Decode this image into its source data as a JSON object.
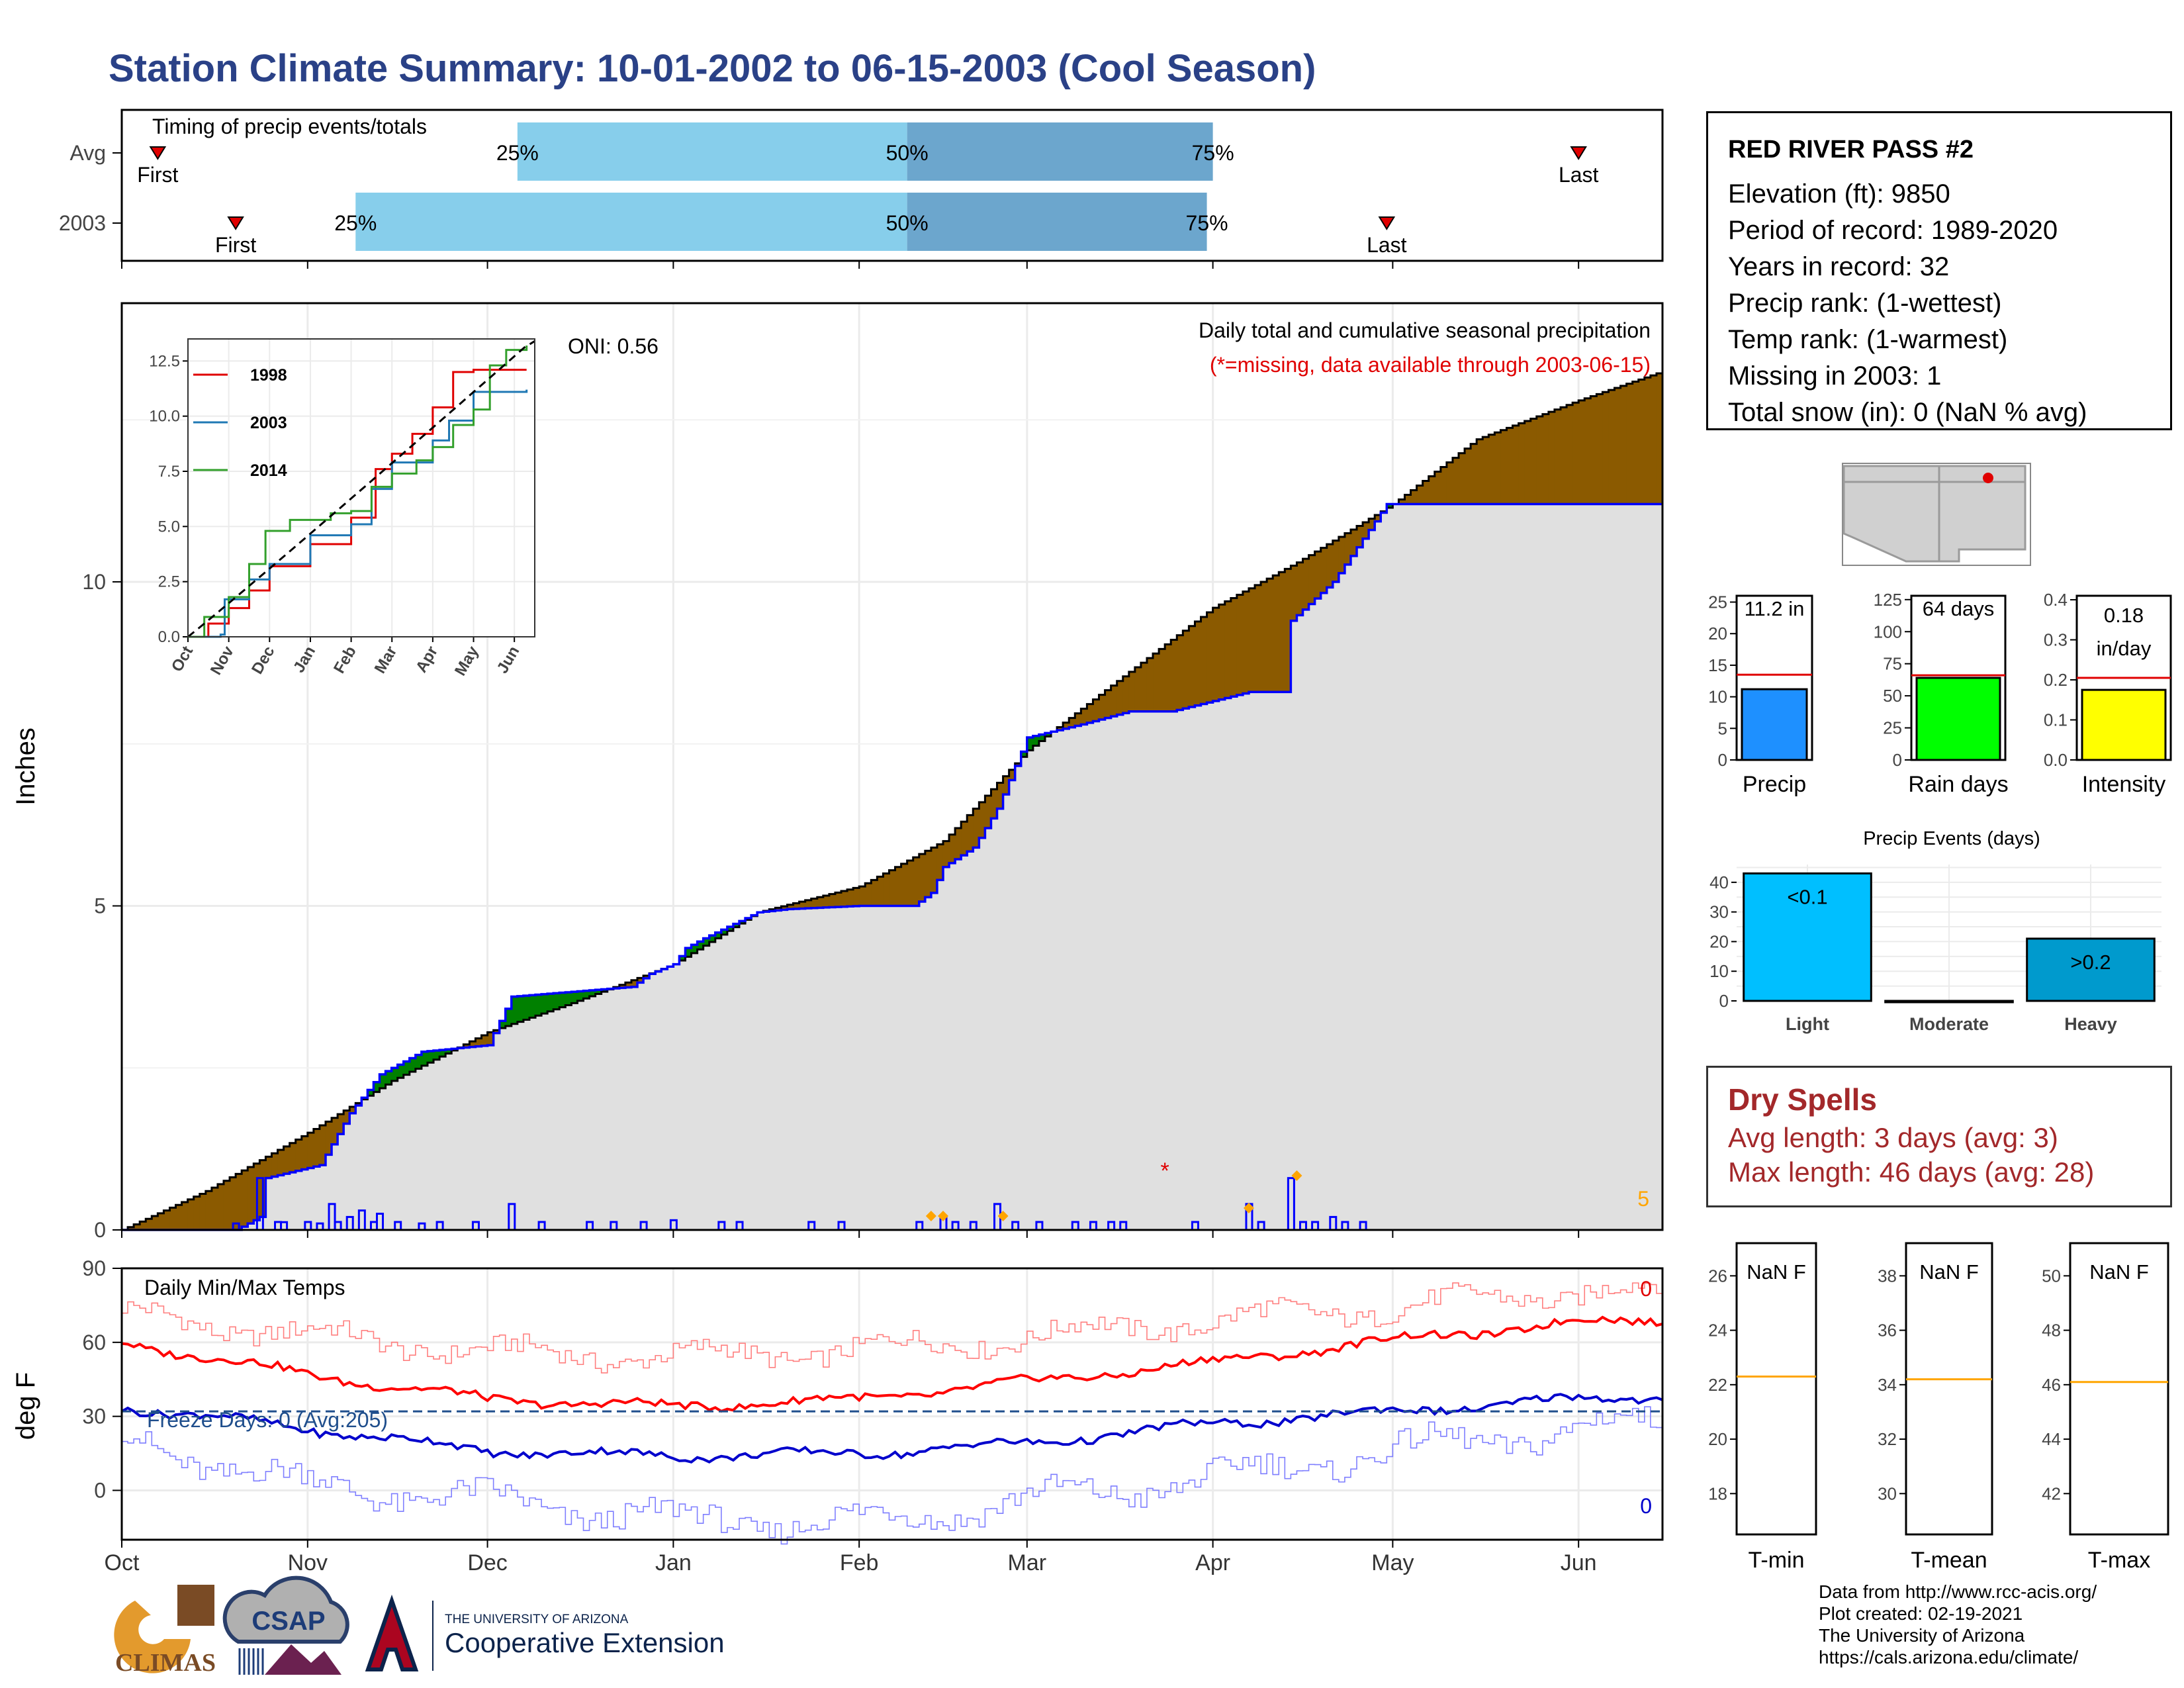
{
  "title": "Station Climate Summary: 10-01-2002 to 06-15-2003 (Cool Season)",
  "colors": {
    "title": "#2a4187",
    "cumulative_current": "#0000ff",
    "surplus_fill": "#008000",
    "deficit_fill": "#8b5a00",
    "normal_area": "#e0e0e0",
    "tmax": "#ff0000",
    "tmin": "#0000cc",
    "precip_bar": "#1e90ff",
    "raindays_bar": "#00ff00",
    "intensity_bar": "#ffff00",
    "dry_spells_text": "#a3282a"
  },
  "timing_panel": {
    "label": "Timing of precip events/totals",
    "rows": [
      {
        "name": "Avg",
        "first_label": "First",
        "last_label": "Last",
        "p25_label": "25%",
        "p50_label": "50%",
        "p75_label": "75%",
        "first": "2002-10-07",
        "p25": "2002-12-06",
        "p50": "2003-02-09",
        "p75": "2003-04-01",
        "last": "2003-06-01"
      },
      {
        "name": "2003",
        "first_label": "First",
        "last_label": "Last",
        "p25_label": "25%",
        "p50_label": "50%",
        "p75_label": "75%",
        "first": "2002-10-20",
        "p25": "2002-11-09",
        "p50": "2003-02-09",
        "p75": "2003-03-31",
        "last": "2003-04-30"
      }
    ]
  },
  "precip_panel": {
    "ylabel": "Inches",
    "yticks": [
      0,
      5,
      10
    ],
    "title_line1": "Daily total and cumulative seasonal precipitation",
    "title_line2": "(*=missing, data available through 2003-06-15)",
    "count_label": "5",
    "missing_marker": "*"
  },
  "inset": {
    "oni_label": "ONI: 0.56",
    "legend": [
      "1998",
      "2003",
      "2014"
    ],
    "yticks": [
      "0.0",
      "2.5",
      "5.0",
      "7.5",
      "10.0",
      "12.5"
    ],
    "xticks": [
      "Oct",
      "Nov",
      "Dec",
      "Jan",
      "Feb",
      "Mar",
      "Apr",
      "May",
      "Jun"
    ]
  },
  "temp_panel": {
    "ylabel": "deg F",
    "label": "Daily Min/Max Temps",
    "freeze_label": "Freeze Days: 0 (Avg:205)",
    "yticks": [
      0,
      30,
      60,
      90
    ],
    "top_count": "0",
    "bottom_count": "0"
  },
  "x_months": [
    "Oct",
    "Nov",
    "Dec",
    "Jan",
    "Feb",
    "Mar",
    "Apr",
    "May",
    "Jun"
  ],
  "station": {
    "name": "RED RIVER PASS #2",
    "lines": [
      "Elevation (ft): 9850",
      "Period of record: 1989-2020",
      "Years in record: 32",
      "Precip rank:  (1-wettest)",
      "Temp rank:  (1-warmest)",
      "Missing in 2003: 1",
      "Total snow (in): 0 (NaN % avg)"
    ]
  },
  "mini_bars": [
    {
      "label": "Precip",
      "value_text": "11.2 in",
      "value": 11.2,
      "avg": 13.5,
      "ymax": 26,
      "ticks": [
        "0",
        "5",
        "10",
        "15",
        "20",
        "25"
      ]
    },
    {
      "label": "Rain days",
      "value_text": "64 days",
      "value": 64,
      "avg": 66,
      "ymax": 128,
      "ticks": [
        "0",
        "25",
        "50",
        "75",
        "100",
        "125"
      ]
    },
    {
      "label": "Intensity",
      "value_text": "0.18 in/day",
      "value_line1": "0.18",
      "value_line2": "in/day",
      "value": 0.175,
      "avg": 0.205,
      "ymax": 0.41,
      "ticks": [
        "0.0",
        "0.1",
        "0.2",
        "0.3",
        "0.4"
      ]
    }
  ],
  "events": {
    "title": "Precip Events (days)",
    "categories": [
      "Light",
      "Moderate",
      "Heavy"
    ],
    "values": [
      43,
      0,
      21
    ],
    "labels": [
      "<0.1",
      "",
      ">0.2"
    ],
    "ticks": [
      "0",
      "10",
      "20",
      "30",
      "40"
    ]
  },
  "dry_spells": {
    "title": "Dry Spells",
    "avg_line": "Avg length: 3 days (avg: 3)",
    "max_line": "Max length: 46 days (avg: 28)"
  },
  "temp_boxes": [
    {
      "label": "T-min",
      "value_text": "NaN F",
      "avg": 22.3,
      "ticks": [
        "18",
        "20",
        "22",
        "24",
        "26"
      ]
    },
    {
      "label": "T-mean",
      "value_text": "NaN F",
      "avg": 34.2,
      "ticks": [
        "30",
        "32",
        "34",
        "36",
        "38"
      ]
    },
    {
      "label": "T-max",
      "value_text": "NaN F",
      "avg": 46.1,
      "ticks": [
        "42",
        "44",
        "46",
        "48",
        "50"
      ]
    }
  ],
  "credits": [
    "Data from http://www.rcc-acis.org/",
    "Plot created: 02-19-2021",
    "The University of Arizona",
    "https://cals.arizona.edu/climate/"
  ],
  "logos": {
    "climas": "CLIMAS",
    "csap": "CSAP",
    "ua_line1": "THE UNIVERSITY OF ARIZONA",
    "ua_line2": "Cooperative Extension"
  },
  "chart_data": [
    {
      "type": "area",
      "name": "cumulative precipitation",
      "ylabel": "Inches",
      "ylim": [
        0,
        14.3
      ],
      "normal_cumulative": {
        "x": [
          "2002-10-01",
          "2002-10-15",
          "2002-11-01",
          "2002-11-15",
          "2002-12-01",
          "2002-12-15",
          "2003-01-01",
          "2003-01-15",
          "2003-02-01",
          "2003-02-15",
          "2003-03-01",
          "2003-03-15",
          "2003-04-01",
          "2003-04-15",
          "2003-05-01",
          "2003-05-15",
          "2003-06-01",
          "2003-06-15"
        ],
        "y": [
          0.0,
          0.6,
          1.5,
          2.3,
          3.05,
          3.5,
          4.1,
          4.9,
          5.3,
          6.0,
          7.4,
          8.4,
          9.6,
          10.3,
          11.2,
          12.2,
          12.8,
          13.25
        ]
      },
      "current_cumulative": {
        "x": [
          "2002-10-01",
          "2002-10-20",
          "2002-10-24",
          "2002-10-25",
          "2002-11-03",
          "2002-11-08",
          "2002-11-13",
          "2002-11-20",
          "2002-12-01",
          "2002-12-05",
          "2002-12-25",
          "2002-12-28",
          "2003-01-01",
          "2003-01-03",
          "2003-01-06",
          "2003-01-15",
          "2003-01-20",
          "2003-02-01",
          "2003-02-10",
          "2003-02-13",
          "2003-02-15",
          "2003-02-20",
          "2003-02-24",
          "2003-03-01",
          "2003-03-10",
          "2003-03-18",
          "2003-03-25",
          "2003-04-07",
          "2003-04-13",
          "2003-04-14",
          "2003-04-21",
          "2003-04-30",
          "2003-06-15"
        ],
        "y": [
          0.0,
          0.0,
          0.2,
          0.8,
          1.0,
          1.8,
          2.4,
          2.75,
          2.85,
          3.6,
          3.75,
          3.95,
          4.1,
          4.35,
          4.5,
          4.9,
          4.95,
          5.0,
          5.0,
          5.2,
          5.6,
          5.9,
          6.5,
          7.6,
          7.8,
          8.0,
          8.0,
          8.3,
          8.3,
          9.4,
          10.0,
          11.2,
          11.2
        ]
      }
    },
    {
      "type": "bar",
      "name": "daily precipitation",
      "x": [
        "2002-10-20",
        "2002-10-24",
        "2002-10-28",
        "2002-11-03",
        "2002-11-05",
        "2002-11-08",
        "2002-11-10",
        "2002-11-13",
        "2002-11-20",
        "2002-12-05",
        "2003-01-01",
        "2003-02-15",
        "2003-02-24",
        "2003-04-07",
        "2003-04-14",
        "2003-04-21"
      ],
      "values": [
        0.1,
        0.8,
        0.12,
        0.1,
        0.4,
        0.2,
        0.3,
        0.25,
        0.1,
        0.4,
        0.15,
        0.2,
        0.4,
        0.4,
        0.8,
        0.2
      ]
    },
    {
      "type": "line",
      "name": "daily temperatures",
      "ylabel": "deg F",
      "ylim": [
        -20,
        90
      ],
      "x": [
        "2002-10-01",
        "2002-11-01",
        "2002-12-01",
        "2003-01-01",
        "2003-02-01",
        "2003-03-01",
        "2003-04-01",
        "2003-05-01",
        "2003-06-01",
        "2003-06-15"
      ],
      "series": [
        {
          "name": "Tmax",
          "values": [
            60,
            47,
            37,
            34,
            37,
            44,
            52,
            61,
            68,
            69
          ]
        },
        {
          "name": "Tmin",
          "values": [
            34,
            25,
            16,
            14,
            15,
            19,
            27,
            32,
            37,
            38
          ]
        },
        {
          "name": "Tmax record",
          "values": [
            71,
            63,
            56,
            54,
            57,
            62,
            69,
            74,
            81,
            80
          ]
        },
        {
          "name": "Tmin record",
          "values": [
            20,
            2,
            -4,
            -12,
            -13,
            -4,
            5,
            16,
            25,
            27
          ]
        }
      ],
      "freeze_line": 32
    }
  ]
}
